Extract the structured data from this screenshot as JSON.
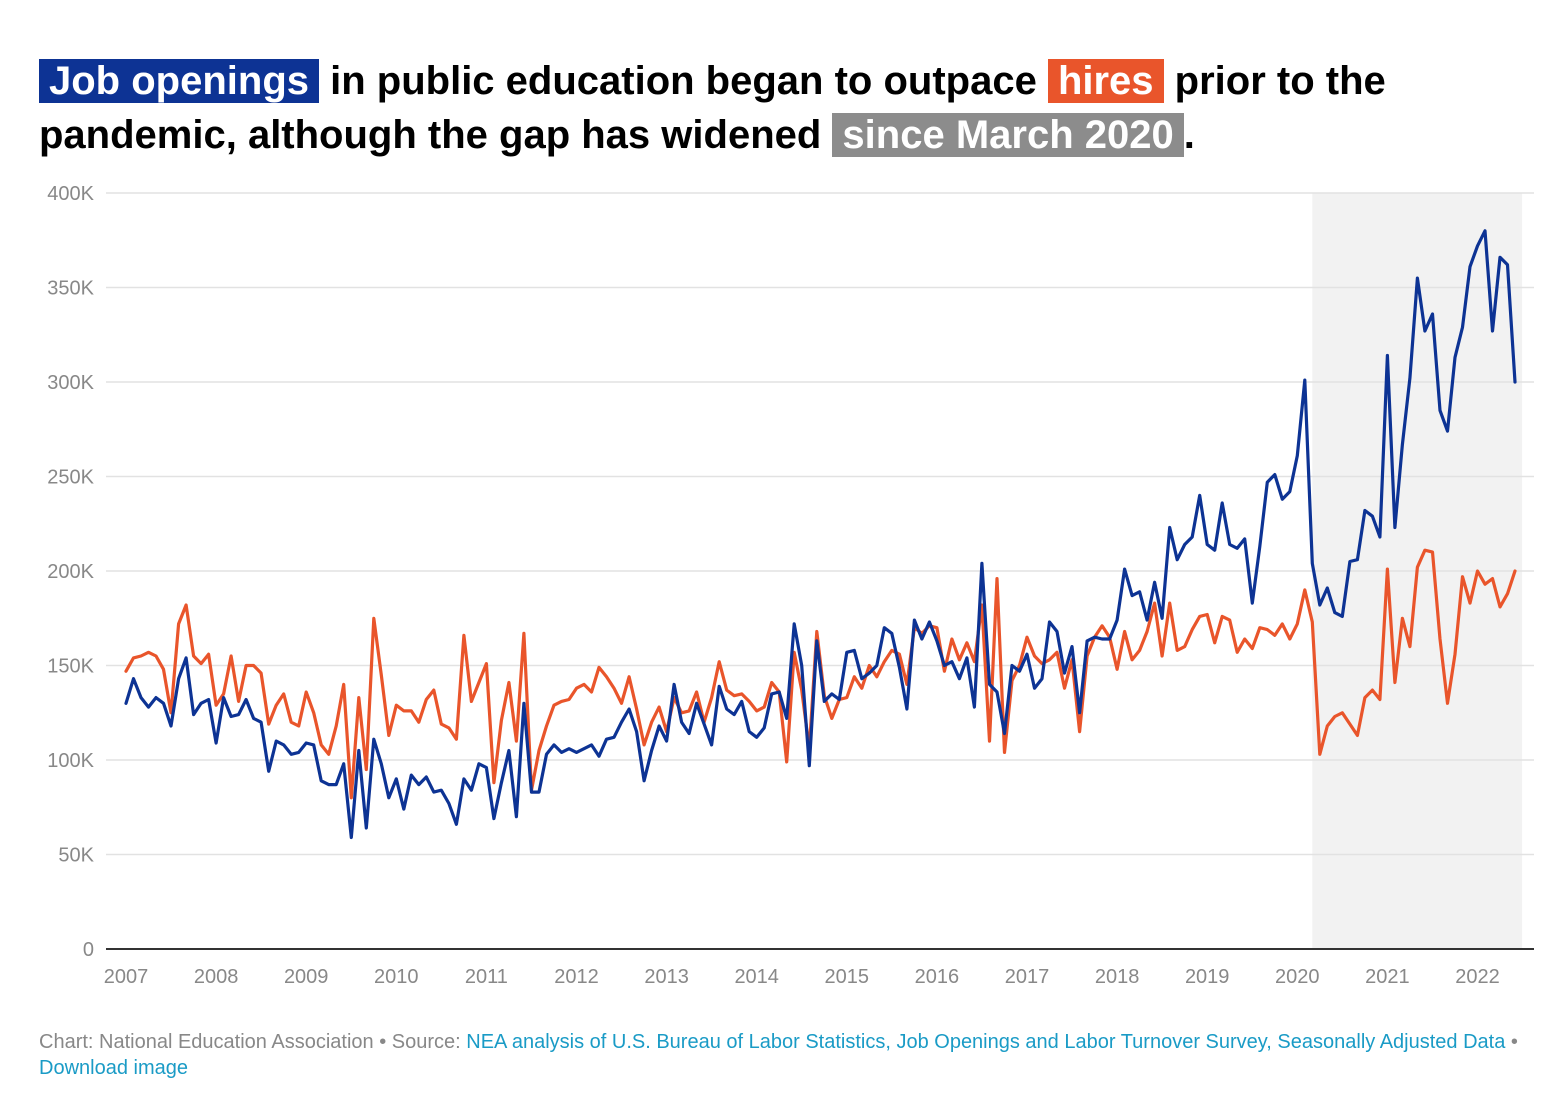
{
  "title": {
    "p1": "Job openings",
    "p2": " in public education began to outpace ",
    "p3": "hires",
    "p4": " prior to the pandemic, although the gap has widened ",
    "p5": "since March 2020",
    "p6": "."
  },
  "colors": {
    "openings": "#0d3394",
    "hires": "#e9552b",
    "shade": "#f2f2f2",
    "grid": "#e2e2e2",
    "axis": "#333333",
    "label": "#888888"
  },
  "footer": {
    "chart_prefix": "Chart: National Education Association",
    "sep1": " • Source: ",
    "source": "NEA analysis of U.S. Bureau of Labor Statistics, Job Openings and Labor Turnover Survey, Seasonally Adjusted Data",
    "sep2": " • ",
    "download": "Download image"
  },
  "chart_data": {
    "type": "line",
    "title": "Job openings in public education began to outpace hires prior to the pandemic, although the gap has widened since March 2020.",
    "xlabel": "",
    "ylabel": "",
    "x_start": "2007-01",
    "x_ticks": [
      "2007",
      "2008",
      "2009",
      "2010",
      "2011",
      "2012",
      "2013",
      "2014",
      "2015",
      "2016",
      "2017",
      "2018",
      "2019",
      "2020",
      "2021",
      "2022"
    ],
    "y_ticks": [
      0,
      50000,
      100000,
      150000,
      200000,
      250000,
      300000,
      350000,
      400000
    ],
    "y_tick_labels": [
      "0",
      "50K",
      "100K",
      "150K",
      "200K",
      "250K",
      "300K",
      "350K",
      "400K"
    ],
    "ylim": [
      0,
      400000
    ],
    "shaded_period": {
      "from": "2020-03",
      "to": "2022-06",
      "label": "since March 2020"
    },
    "grid": true,
    "series": [
      {
        "name": "Job openings",
        "values": [
          130000,
          143000,
          133000,
          128000,
          133000,
          130000,
          118000,
          143000,
          154000,
          124000,
          130000,
          132000,
          109000,
          133000,
          123000,
          124000,
          132000,
          122000,
          120000,
          94000,
          110000,
          108000,
          103000,
          104000,
          109000,
          108000,
          89000,
          87000,
          87000,
          98000,
          59000,
          105000,
          64000,
          111000,
          98000,
          80000,
          90000,
          74000,
          92000,
          87000,
          91000,
          83000,
          84000,
          77000,
          66000,
          90000,
          84000,
          98000,
          96000,
          69000,
          88000,
          105000,
          70000,
          130000,
          83000,
          83000,
          103000,
          108000,
          104000,
          106000,
          104000,
          106000,
          108000,
          102000,
          111000,
          112000,
          120000,
          127000,
          115000,
          89000,
          105000,
          118000,
          110000,
          140000,
          120000,
          114000,
          130000,
          119000,
          108000,
          139000,
          127000,
          124000,
          131000,
          115000,
          112000,
          117000,
          135000,
          136000,
          122000,
          172000,
          150000,
          97000,
          163000,
          131000,
          135000,
          132000,
          157000,
          158000,
          143000,
          146000,
          150000,
          170000,
          167000,
          149000,
          127000,
          174000,
          164000,
          173000,
          163000,
          150000,
          152000,
          143000,
          154000,
          128000,
          204000,
          140000,
          136000,
          114000,
          150000,
          147000,
          156000,
          138000,
          143000,
          173000,
          168000,
          146000,
          160000,
          125000,
          163000,
          165000,
          164000,
          164000,
          174000,
          201000,
          187000,
          189000,
          174000,
          194000,
          175000,
          223000,
          206000,
          214000,
          218000,
          240000,
          214000,
          211000,
          236000,
          214000,
          212000,
          217000,
          183000,
          213000,
          247000,
          251000,
          238000,
          242000,
          261000,
          301000,
          204000,
          182000,
          191000,
          178000,
          176000,
          205000,
          206000,
          232000,
          229000,
          218000,
          314000,
          223000,
          267000,
          302000,
          355000,
          327000,
          336000,
          285000,
          274000,
          313000,
          329000,
          361000,
          372000,
          380000,
          327000,
          366000,
          362000,
          300000
        ]
      },
      {
        "name": "Hires",
        "values": [
          147000,
          154000,
          155000,
          157000,
          155000,
          148000,
          125000,
          172000,
          182000,
          155000,
          151000,
          156000,
          129000,
          135000,
          155000,
          131000,
          150000,
          150000,
          146000,
          119000,
          129000,
          135000,
          120000,
          118000,
          136000,
          125000,
          108000,
          103000,
          118000,
          140000,
          80000,
          133000,
          95000,
          175000,
          145000,
          113000,
          129000,
          126000,
          126000,
          120000,
          132000,
          137000,
          119000,
          117000,
          111000,
          166000,
          131000,
          141000,
          151000,
          88000,
          121000,
          141000,
          110000,
          167000,
          84000,
          105000,
          118000,
          129000,
          131000,
          132000,
          138000,
          140000,
          136000,
          149000,
          144000,
          138000,
          130000,
          144000,
          127000,
          108000,
          120000,
          128000,
          115000,
          133000,
          125000,
          126000,
          136000,
          120000,
          133000,
          152000,
          137000,
          134000,
          135000,
          131000,
          126000,
          128000,
          141000,
          136000,
          99000,
          157000,
          137000,
          106000,
          168000,
          134000,
          122000,
          132000,
          133000,
          144000,
          138000,
          150000,
          144000,
          152000,
          158000,
          156000,
          140000,
          170000,
          167000,
          171000,
          170000,
          147000,
          164000,
          153000,
          162000,
          152000,
          182000,
          110000,
          196000,
          104000,
          142000,
          150000,
          165000,
          155000,
          151000,
          153000,
          157000,
          138000,
          153000,
          115000,
          155000,
          165000,
          171000,
          165000,
          148000,
          168000,
          153000,
          158000,
          168000,
          183000,
          155000,
          183000,
          158000,
          160000,
          169000,
          176000,
          177000,
          162000,
          176000,
          174000,
          157000,
          164000,
          159000,
          170000,
          169000,
          166000,
          172000,
          164000,
          172000,
          190000,
          173000,
          103000,
          118000,
          123000,
          125000,
          119000,
          113000,
          133000,
          137000,
          132000,
          201000,
          141000,
          175000,
          160000,
          202000,
          211000,
          210000,
          164000,
          130000,
          156000,
          197000,
          183000,
          200000,
          193000,
          196000,
          181000,
          188000,
          200000
        ]
      }
    ]
  }
}
